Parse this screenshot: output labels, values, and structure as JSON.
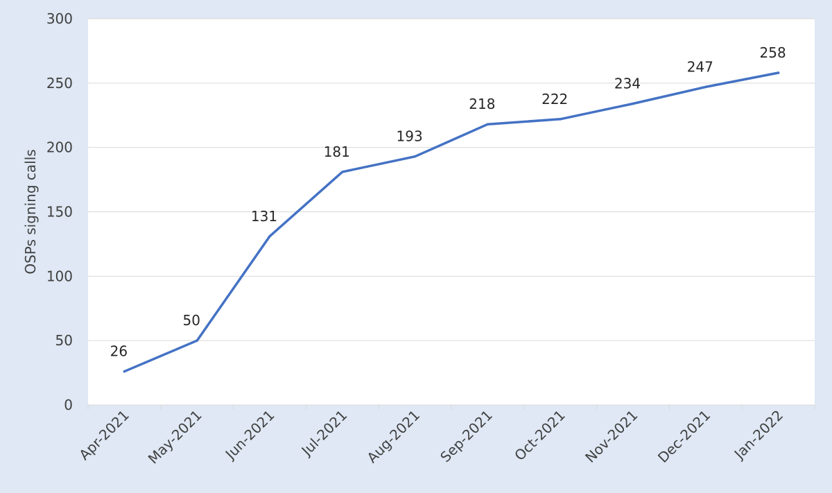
{
  "chart_data": {
    "type": "line",
    "title": "",
    "xlabel": "",
    "ylabel": "OSPs signing calls",
    "categories": [
      "Apr-2021",
      "May-2021",
      "Jun-2021",
      "Jul-2021",
      "Aug-2021",
      "Sep-2021",
      "Oct-2021",
      "Nov-2021",
      "Dec-2021",
      "Jan-2022"
    ],
    "series": [
      {
        "values": [
          26,
          50,
          131,
          181,
          193,
          218,
          222,
          234,
          247,
          258
        ],
        "color": "#4472c4"
      }
    ],
    "ylim": [
      0,
      300
    ],
    "yticks": [
      0,
      50,
      100,
      150,
      200,
      250,
      300
    ],
    "grid": true,
    "legend": "none",
    "data_labels": true
  },
  "colors": {
    "background": "#dfe8f4",
    "plot_background": "#ffffff",
    "gridline": "#d9d9d9",
    "line": "#4472c4"
  }
}
